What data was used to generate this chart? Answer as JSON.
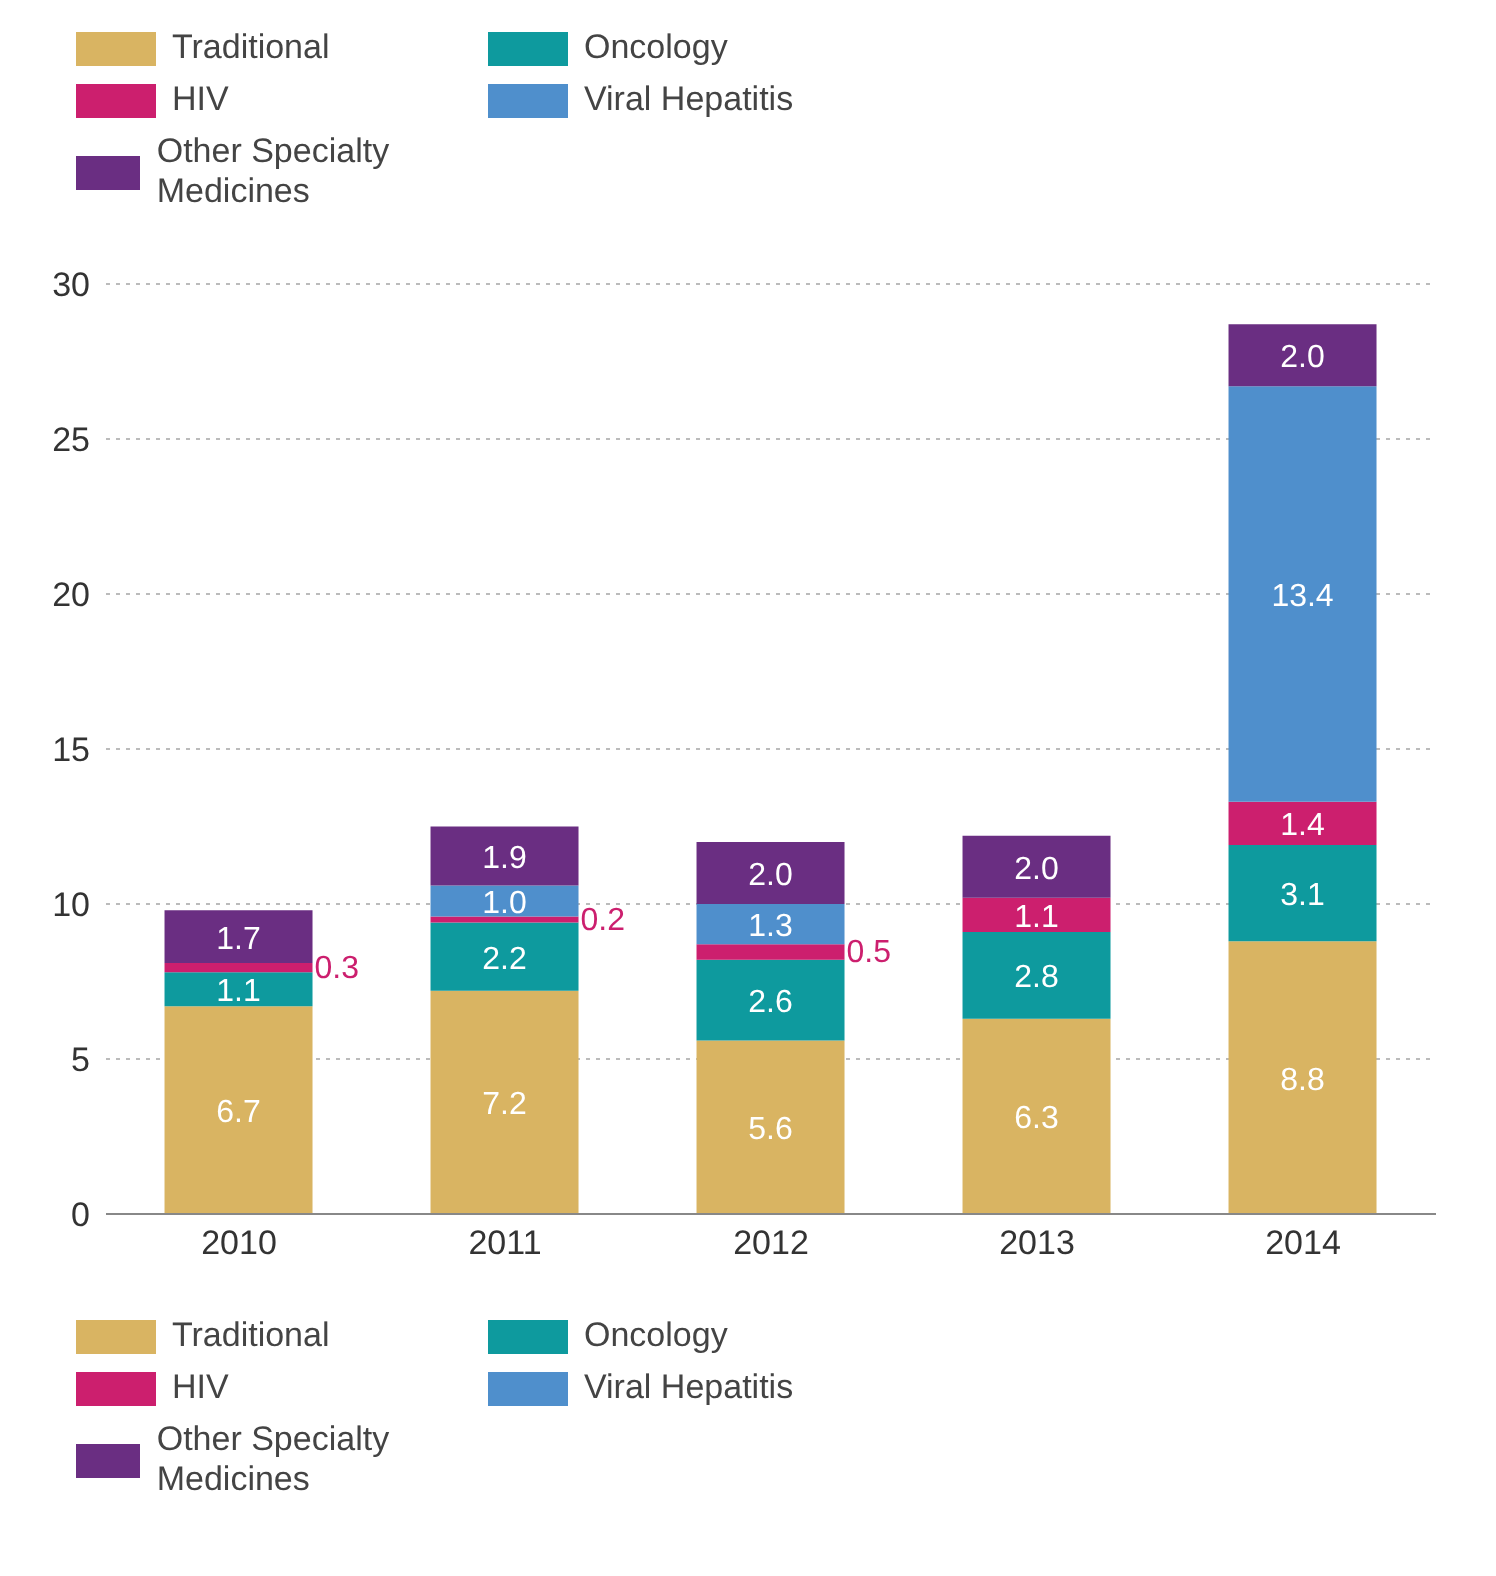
{
  "chart_data": {
    "type": "bar",
    "stacked": true,
    "categories": [
      "2010",
      "2011",
      "2012",
      "2013",
      "2014"
    ],
    "series": [
      {
        "name": "Traditional",
        "color": "#d9b462",
        "values": [
          6.7,
          7.2,
          5.6,
          6.3,
          8.8
        ],
        "value_labels": [
          "6.7",
          "7.2",
          "5.6",
          "6.3",
          "8.8"
        ]
      },
      {
        "name": "Oncology",
        "color": "#0e9a9e",
        "values": [
          1.1,
          2.2,
          2.6,
          2.8,
          3.1
        ],
        "value_labels": [
          "1.1",
          "2.2",
          "2.6",
          "2.8",
          "3.1"
        ]
      },
      {
        "name": "HIV",
        "color": "#cc1f6e",
        "values": [
          0.3,
          0.2,
          0.5,
          1.1,
          1.4
        ],
        "value_labels": [
          "0.3",
          "0.2",
          "0.5",
          "1.1",
          "1.4"
        ]
      },
      {
        "name": "Viral Hepatitis",
        "color": "#4f8fcc",
        "values": [
          null,
          1.0,
          1.3,
          null,
          13.4
        ],
        "value_labels": [
          null,
          "1.0",
          "1.3",
          null,
          "13.4"
        ]
      },
      {
        "name": "Other Specialty Medicines",
        "color": "#6a2e82",
        "values": [
          1.7,
          1.9,
          2.0,
          2.0,
          2.0
        ],
        "value_labels": [
          "1.7",
          "1.9",
          "2.0",
          "2.0",
          "2.0"
        ]
      }
    ],
    "ylim": [
      0,
      30
    ],
    "yticks": [
      0,
      5,
      10,
      15,
      20,
      25,
      30
    ],
    "grid": "y",
    "legend": [
      "top",
      "bottom"
    ]
  }
}
